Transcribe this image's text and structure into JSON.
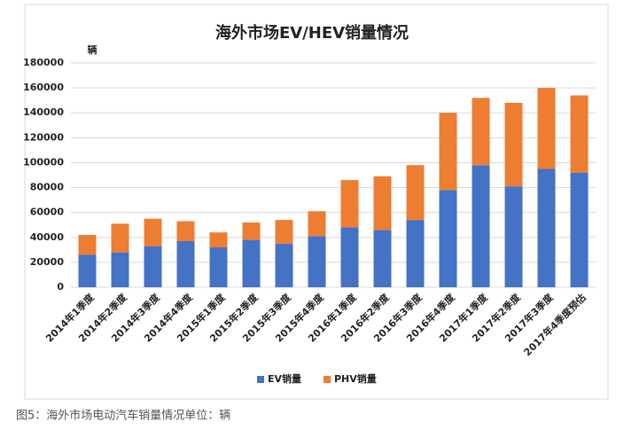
{
  "chart_data": {
    "type": "stacked-bar",
    "title": "海外市场EV/HEV销量情况",
    "y_label": "辆",
    "caption": "图5：海外市场电动汽车销量情况单位：辆",
    "categories": [
      "2014年1季度",
      "2014年2季度",
      "2014年3季度",
      "2014年4季度",
      "2015年1季度",
      "2015年2季度",
      "2015年3季度",
      "2015年4季度",
      "2016年1季度",
      "2016年2季度",
      "2016年3季度",
      "2016年4季度",
      "2017年1季度",
      "2017年2季度",
      "2017年3季度",
      "2017年4季度预估"
    ],
    "series": [
      {
        "name": "EV销量",
        "color": "#4472c4",
        "values": [
          26000,
          28000,
          33000,
          37000,
          32000,
          38000,
          35000,
          41000,
          48000,
          46000,
          54000,
          78000,
          98000,
          81000,
          95000,
          92000
        ]
      },
      {
        "name": "PHV销量",
        "color": "#ed7d31",
        "values": [
          16000,
          23000,
          22000,
          16000,
          12000,
          14000,
          19000,
          20000,
          38000,
          43000,
          44000,
          62000,
          54000,
          67000,
          65000,
          62000
        ]
      }
    ],
    "ylim": [
      0,
      180000
    ],
    "yticks": [
      0,
      20000,
      40000,
      60000,
      80000,
      100000,
      120000,
      140000,
      160000,
      180000
    ],
    "grid": true,
    "legend": "bottom"
  }
}
